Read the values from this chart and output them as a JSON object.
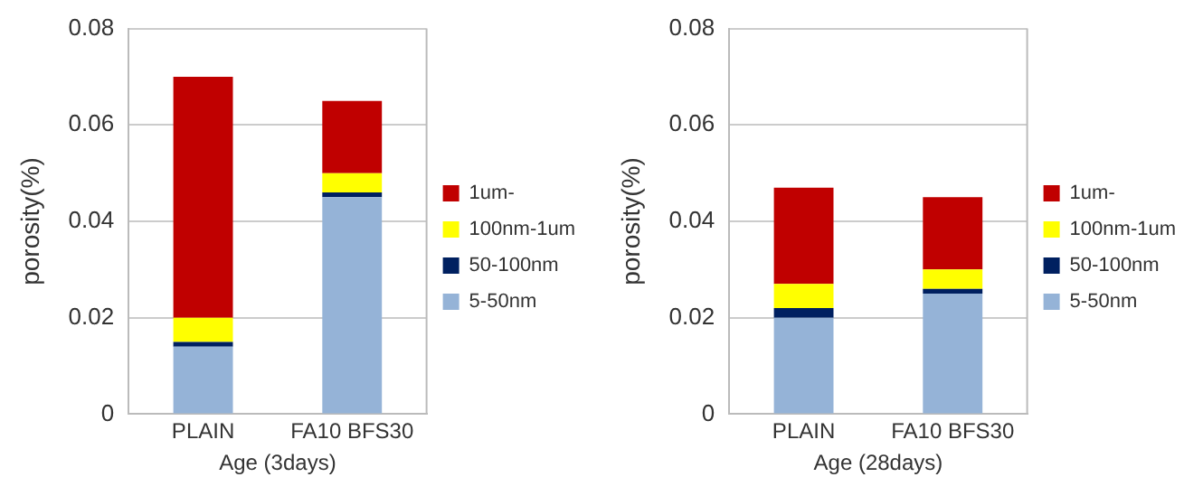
{
  "chart_data": [
    {
      "type": "bar",
      "stacked": true,
      "categories": [
        "PLAIN",
        "FA10 BFS30"
      ],
      "xlabel": "Age (3days)",
      "ylabel": "porosity(%)",
      "ylim": [
        0,
        0.08
      ],
      "yticks": [
        0,
        0.02,
        0.04,
        0.06,
        0.08
      ],
      "grid": "y",
      "legend": "right",
      "series": [
        {
          "name": "5-50nm",
          "color": "#95b3d7",
          "values": [
            0.014,
            0.045
          ]
        },
        {
          "name": "50-100nm",
          "color": "#002060",
          "values": [
            0.001,
            0.001
          ]
        },
        {
          "name": "100nm-1um",
          "color": "#ffff00",
          "values": [
            0.005,
            0.004
          ]
        },
        {
          "name": "1um-",
          "color": "#c00000",
          "values": [
            0.05,
            0.015
          ]
        }
      ]
    },
    {
      "type": "bar",
      "stacked": true,
      "categories": [
        "PLAIN",
        "FA10 BFS30"
      ],
      "xlabel": "Age (28days)",
      "ylabel": "porosity(%)",
      "ylim": [
        0,
        0.08
      ],
      "yticks": [
        0,
        0.02,
        0.04,
        0.06,
        0.08
      ],
      "grid": "y",
      "legend": "right",
      "series": [
        {
          "name": "5-50nm",
          "color": "#95b3d7",
          "values": [
            0.02,
            0.025
          ]
        },
        {
          "name": "50-100nm",
          "color": "#002060",
          "values": [
            0.002,
            0.001
          ]
        },
        {
          "name": "100nm-1um",
          "color": "#ffff00",
          "values": [
            0.005,
            0.004
          ]
        },
        {
          "name": "1um-",
          "color": "#c00000",
          "values": [
            0.02,
            0.015
          ]
        }
      ]
    }
  ]
}
